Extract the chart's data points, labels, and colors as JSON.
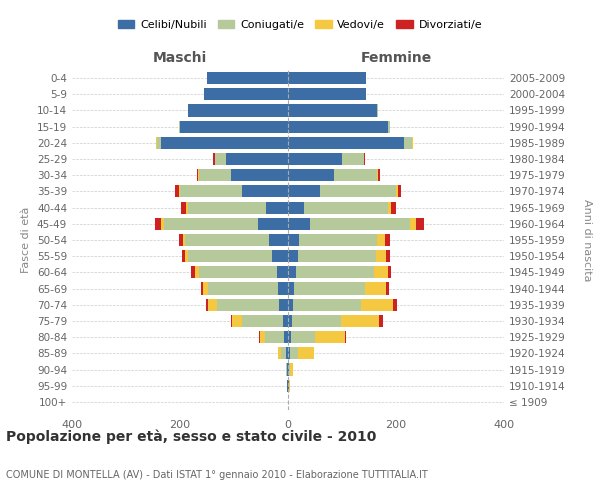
{
  "age_groups": [
    "100+",
    "95-99",
    "90-94",
    "85-89",
    "80-84",
    "75-79",
    "70-74",
    "65-69",
    "60-64",
    "55-59",
    "50-54",
    "45-49",
    "40-44",
    "35-39",
    "30-34",
    "25-29",
    "20-24",
    "15-19",
    "10-14",
    "5-9",
    "0-4"
  ],
  "birth_years": [
    "≤ 1909",
    "1910-1914",
    "1915-1919",
    "1920-1924",
    "1925-1929",
    "1930-1934",
    "1935-1939",
    "1940-1944",
    "1945-1949",
    "1950-1954",
    "1955-1959",
    "1960-1964",
    "1965-1969",
    "1970-1974",
    "1975-1979",
    "1980-1984",
    "1985-1989",
    "1990-1994",
    "1995-1999",
    "2000-2004",
    "2005-2009"
  ],
  "maschi": {
    "celibi": [
      0,
      1,
      1,
      3,
      7,
      10,
      16,
      18,
      20,
      30,
      35,
      55,
      40,
      85,
      105,
      115,
      235,
      200,
      185,
      155,
      150
    ],
    "coniugati": [
      0,
      1,
      2,
      10,
      35,
      75,
      115,
      130,
      145,
      155,
      155,
      175,
      145,
      115,
      60,
      20,
      8,
      2,
      0,
      0,
      0
    ],
    "vedovi": [
      0,
      0,
      1,
      5,
      10,
      18,
      18,
      10,
      8,
      5,
      5,
      5,
      3,
      2,
      1,
      1,
      1,
      0,
      0,
      0,
      0
    ],
    "divorziati": [
      0,
      0,
      0,
      1,
      1,
      2,
      3,
      4,
      7,
      6,
      7,
      12,
      10,
      7,
      3,
      2,
      1,
      0,
      0,
      0,
      0
    ]
  },
  "femmine": {
    "nubili": [
      0,
      1,
      1,
      3,
      5,
      8,
      10,
      12,
      15,
      18,
      20,
      40,
      30,
      60,
      85,
      100,
      215,
      185,
      165,
      145,
      145
    ],
    "coniugate": [
      0,
      1,
      3,
      15,
      45,
      90,
      125,
      130,
      145,
      145,
      145,
      185,
      155,
      140,
      80,
      40,
      15,
      4,
      1,
      0,
      0
    ],
    "vedove": [
      0,
      1,
      5,
      30,
      55,
      70,
      60,
      40,
      25,
      18,
      15,
      12,
      5,
      3,
      2,
      1,
      1,
      0,
      0,
      0,
      0
    ],
    "divorziate": [
      0,
      0,
      0,
      1,
      2,
      8,
      6,
      5,
      6,
      7,
      8,
      15,
      10,
      6,
      4,
      1,
      1,
      0,
      0,
      0,
      0
    ]
  },
  "colors": {
    "celibi": "#3c6ea5",
    "coniugati": "#b5c99a",
    "vedovi": "#f5c842",
    "divorziati": "#cc2222"
  },
  "xlim": 400,
  "title": "Popolazione per età, sesso e stato civile - 2010",
  "subtitle": "COMUNE DI MONTELLA (AV) - Dati ISTAT 1° gennaio 2010 - Elaborazione TUTTITALIA.IT",
  "ylabel_left": "Fasce di età",
  "ylabel_right": "Anni di nascita",
  "xlabel_left": "Maschi",
  "xlabel_right": "Femmine",
  "background_color": "#ffffff",
  "grid_color": "#cccccc"
}
